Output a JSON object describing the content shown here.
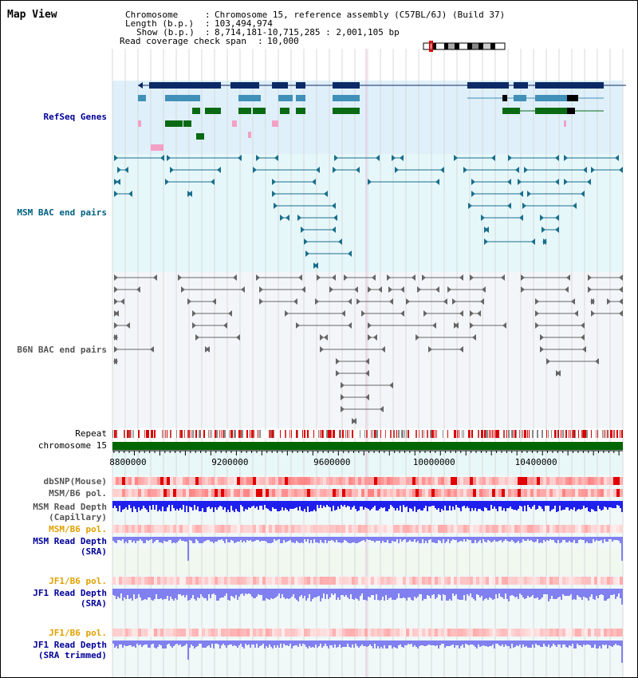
{
  "title": "Map View",
  "info": {
    "chromosome_label": "Chromosome",
    "chromosome_value": "Chromosome 15, reference assembly (C57BL/6J) (Build 37)",
    "length_label": "Length (b.p.)",
    "length_value": "103,494,974",
    "show_label": "Show (b.p.)",
    "show_value": "8,714,181-10,715,285 : 2,001,105 bp",
    "coverage_label": "Read coverage check span",
    "coverage_value": "10,000"
  },
  "tracks": {
    "refseq": "RefSeq Genes",
    "msm_bac": "MSM BAC end pairs",
    "b6n_bac": "B6N BAC end pairs",
    "repeat": "Repeat",
    "chromosome": "chromosome 15",
    "dbsnp": "dbSNP(Mouse)",
    "msm_b6_pol_1": "MSM/B6 pol.",
    "msm_depth_cap_1": "MSM Read Depth",
    "msm_depth_cap_2": "(Capillary)",
    "msm_b6_pol_2": "MSM/B6 pol.",
    "msm_depth_sra_1": "MSM Read Depth",
    "msm_depth_sra_2": "(SRA)",
    "jf1_b6_pol_1": "JF1/B6 pol.",
    "jf1_depth_sra_1": "JF1 Read Depth",
    "jf1_depth_sra_2": "(SRA)",
    "jf1_b6_pol_2": "JF1/B6 pol.",
    "jf1_depth_trim_1": "JF1 Read Depth",
    "jf1_depth_trim_2": "(SRA trimmed)"
  },
  "axis": {
    "ticks": [
      "8800000",
      "9200000",
      "9600000",
      "10000000",
      "10400000"
    ],
    "tick_values": [
      8800000,
      9200000,
      9600000,
      10000000,
      10400000
    ],
    "start": 8714181,
    "end": 10715285
  },
  "colors": {
    "refseq_bg": "#dff0fb",
    "msm_bg": "#e6f7fa",
    "b6n_bg": "#f3f6f8",
    "depth_bg": "#f0f8f0",
    "gene_navy": "#0b2a66",
    "gene_teal": "#4090b8",
    "gene_green": "#0a6a14",
    "gene_pink": "#f4a0c4",
    "msm_pair": "#1a6e8c",
    "b6n_pair": "#666666",
    "repeat_red": "#d80000",
    "chrom_green": "#006600",
    "depth_blue": "#2020ee",
    "depth_light": "#8080f0",
    "label_blue": "#000099",
    "label_orange": "#e0a000",
    "label_teal": "#006080"
  }
}
